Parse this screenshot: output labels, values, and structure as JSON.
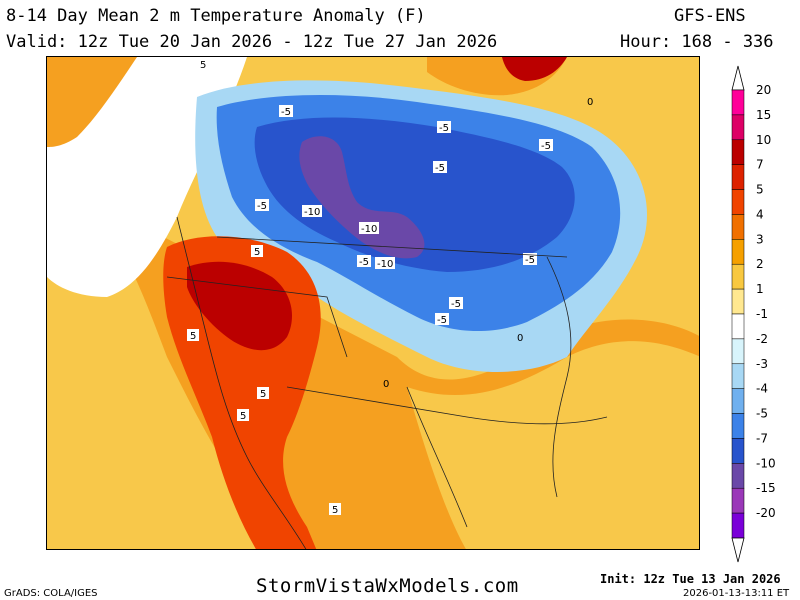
{
  "header": {
    "title": "8-14 Day Mean 2 m Temperature Anomaly (F)",
    "model": "GFS-ENS",
    "valid": "Valid: 12z Tue 20 Jan 2026 - 12z Tue 27 Jan 2026",
    "hours": "Hour: 168 - 336"
  },
  "legend": {
    "levels": [
      {
        "label": "20",
        "color": "#ff0099"
      },
      {
        "label": "15",
        "color": "#dd0066"
      },
      {
        "label": "10",
        "color": "#bb0000"
      },
      {
        "label": "7",
        "color": "#dd2200"
      },
      {
        "label": "5",
        "color": "#f04400"
      },
      {
        "label": "4",
        "color": "#f07000"
      },
      {
        "label": "3",
        "color": "#f5a000"
      },
      {
        "label": "2",
        "color": "#f8c840"
      },
      {
        "label": "1",
        "color": "#ffe890"
      },
      {
        "label": "-1",
        "color": "#ffffff"
      },
      {
        "label": "-2",
        "color": "#d8f4fb"
      },
      {
        "label": "-3",
        "color": "#a8d8f4"
      },
      {
        "label": "-4",
        "color": "#70b0ee"
      },
      {
        "label": "-5",
        "color": "#3c82e8"
      },
      {
        "label": "-7",
        "color": "#2854cc"
      },
      {
        "label": "-10",
        "color": "#6a48a8"
      },
      {
        "label": "-15",
        "color": "#9a38b8"
      },
      {
        "label": "-20",
        "color": "#7a00d8"
      }
    ]
  },
  "map": {
    "contour_labels": [
      "5",
      "-5",
      "-10",
      "0"
    ]
  },
  "footer": {
    "grads": "GrADS: COLA/IGES",
    "site": "StormVistaWxModels.com",
    "init": "Init: 12z Tue 13 Jan 2026",
    "stamp": "2026-01-13-13:11 ET"
  }
}
